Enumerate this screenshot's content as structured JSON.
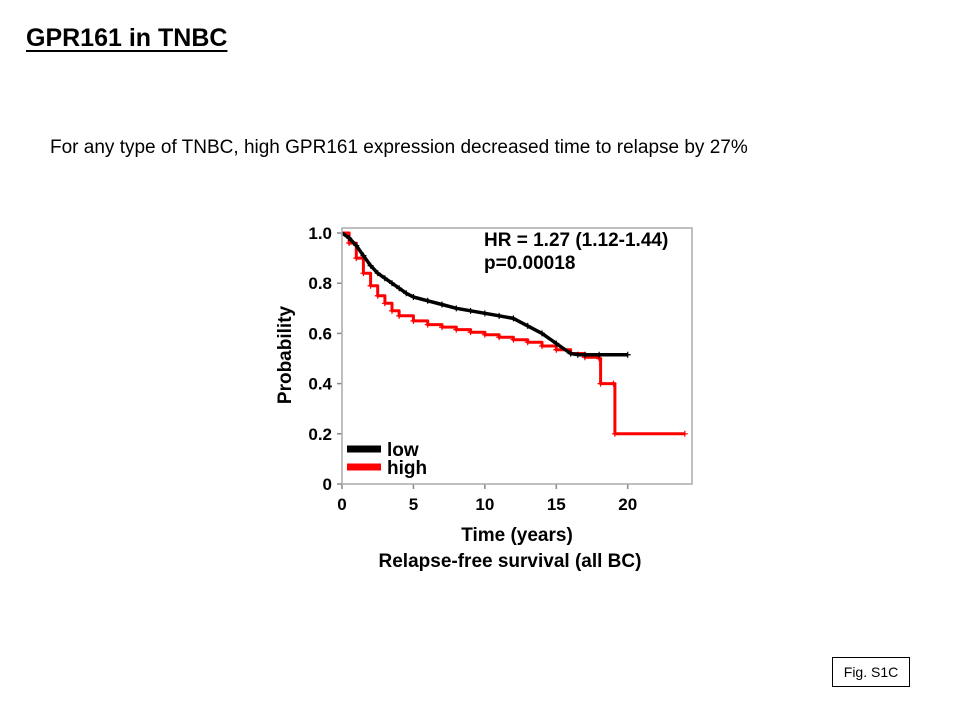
{
  "title": "GPR161 in TNBC",
  "subtitle": "For any type of TNBC, high GPR161 expression decreased time to relapse by 27%",
  "figure_label": "Fig. S1C",
  "chart_data": {
    "type": "line",
    "title": "",
    "xlabel": "Time (years)",
    "caption": "Relapse-free survival (all BC)",
    "ylabel": "Probability",
    "xlim": [
      0,
      24.5
    ],
    "ylim": [
      0,
      1.02
    ],
    "x_ticks": [
      0,
      5,
      10,
      15,
      20
    ],
    "x_tick_labels": [
      "0",
      "5",
      "10",
      "15",
      "20"
    ],
    "y_ticks": [
      0,
      0.2,
      0.4,
      0.6,
      0.8,
      1.0
    ],
    "y_tick_labels": [
      "0",
      "0.2",
      "0.4",
      "0.6",
      "0.8",
      "1.0"
    ],
    "grid": false,
    "legend_position": "bottom-left",
    "annotations": [
      "HR = 1.27 (1.12-1.44)",
      "p=0.00018"
    ],
    "series": [
      {
        "name": "low",
        "color": "#000000",
        "step": false,
        "points": [
          [
            0,
            1.0
          ],
          [
            0.5,
            0.98
          ],
          [
            1,
            0.95
          ],
          [
            1.5,
            0.91
          ],
          [
            2,
            0.87
          ],
          [
            2.5,
            0.84
          ],
          [
            3,
            0.82
          ],
          [
            3.5,
            0.8
          ],
          [
            4,
            0.78
          ],
          [
            4.5,
            0.76
          ],
          [
            5,
            0.745
          ],
          [
            6,
            0.73
          ],
          [
            7,
            0.715
          ],
          [
            8,
            0.7
          ],
          [
            9,
            0.69
          ],
          [
            10,
            0.68
          ],
          [
            11,
            0.67
          ],
          [
            12,
            0.66
          ],
          [
            13,
            0.63
          ],
          [
            14,
            0.6
          ],
          [
            15,
            0.56
          ],
          [
            16,
            0.52
          ],
          [
            16.5,
            0.515
          ],
          [
            17,
            0.515
          ],
          [
            18,
            0.515
          ],
          [
            20,
            0.515
          ]
        ]
      },
      {
        "name": "high",
        "color": "#ff0000",
        "step": true,
        "points": [
          [
            0,
            1.0
          ],
          [
            0.5,
            0.96
          ],
          [
            1,
            0.9
          ],
          [
            1.5,
            0.84
          ],
          [
            2,
            0.79
          ],
          [
            2.5,
            0.75
          ],
          [
            3,
            0.72
          ],
          [
            3.5,
            0.69
          ],
          [
            4,
            0.67
          ],
          [
            5,
            0.65
          ],
          [
            6,
            0.635
          ],
          [
            7,
            0.625
          ],
          [
            8,
            0.615
          ],
          [
            9,
            0.605
          ],
          [
            10,
            0.595
          ],
          [
            11,
            0.585
          ],
          [
            12,
            0.575
          ],
          [
            13,
            0.565
          ],
          [
            14,
            0.55
          ],
          [
            15,
            0.535
          ],
          [
            16,
            0.52
          ],
          [
            17,
            0.505
          ],
          [
            18,
            0.5
          ],
          [
            18.1,
            0.4
          ],
          [
            19,
            0.4
          ],
          [
            19.1,
            0.2
          ],
          [
            24,
            0.2
          ]
        ]
      }
    ]
  }
}
